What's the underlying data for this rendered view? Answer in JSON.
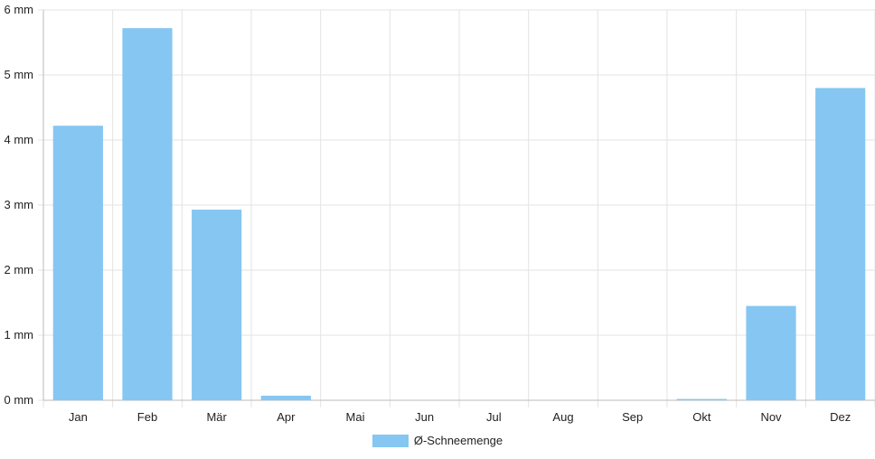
{
  "chart_data": {
    "type": "bar",
    "categories": [
      "Jan",
      "Feb",
      "Mär",
      "Apr",
      "Mai",
      "Jun",
      "Jul",
      "Aug",
      "Sep",
      "Okt",
      "Nov",
      "Dez"
    ],
    "series": [
      {
        "name": "Ø-Schneemenge",
        "values": [
          4.22,
          5.72,
          2.93,
          0.07,
          0,
          0,
          0,
          0,
          0,
          0.02,
          1.45,
          4.8
        ]
      }
    ],
    "ylim": [
      0,
      6
    ],
    "yticks": [
      "0 mm",
      "1 mm",
      "2 mm",
      "3 mm",
      "4 mm",
      "5 mm",
      "6 mm"
    ],
    "grid": true,
    "legend_position": "bottom",
    "colors": {
      "bar": "#86c6f2",
      "grid": "#e3e3e3",
      "axis": "#bbbbbb"
    }
  }
}
